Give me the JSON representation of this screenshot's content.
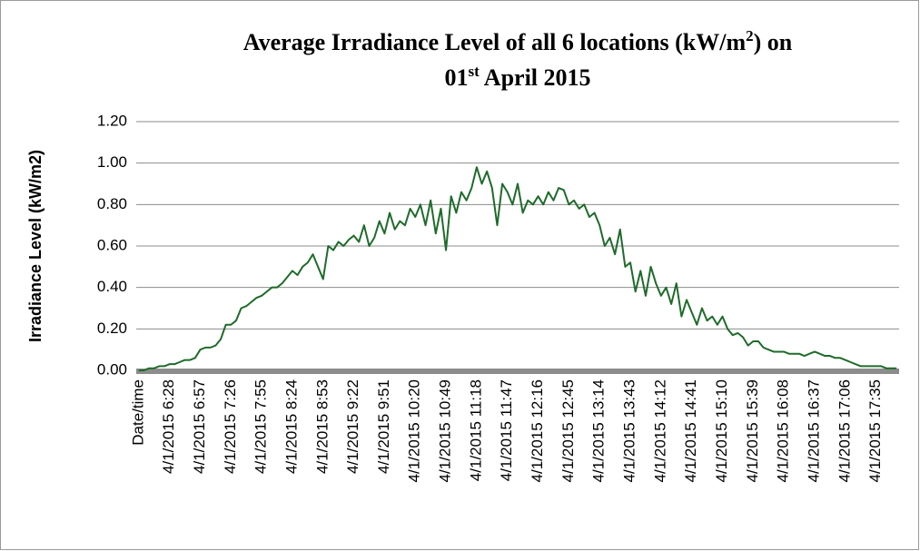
{
  "chart_data": {
    "type": "line",
    "title": {
      "line1": [
        "Average Irradiance Level of all 6 locations (kW/m",
        "2",
        ") on"
      ],
      "line2": [
        "01",
        "st",
        " April 2015"
      ]
    },
    "y_label": "Irradiance Level (kW/m2)",
    "categories": [
      "Date/time",
      null,
      null,
      null,
      null,
      null,
      "4/1/2015 6:28",
      null,
      null,
      null,
      null,
      null,
      "4/1/2015 6:57",
      null,
      null,
      null,
      null,
      null,
      "4/1/2015 7:26",
      null,
      null,
      null,
      null,
      null,
      "4/1/2015 7:55",
      null,
      null,
      null,
      null,
      null,
      "4/1/2015 8:24",
      null,
      null,
      null,
      null,
      null,
      "4/1/2015 8:53",
      null,
      null,
      null,
      null,
      null,
      "4/1/2015 9:22",
      null,
      null,
      null,
      null,
      null,
      "4/1/2015 9:51",
      null,
      null,
      null,
      null,
      null,
      "4/1/2015 10:20",
      null,
      null,
      null,
      null,
      null,
      "4/1/2015 10:49",
      null,
      null,
      null,
      null,
      null,
      "4/1/2015 11:18",
      null,
      null,
      null,
      null,
      null,
      "4/1/2015 11:47",
      null,
      null,
      null,
      null,
      null,
      "4/1/2015 12:16",
      null,
      null,
      null,
      null,
      null,
      "4/1/2015 12:45",
      null,
      null,
      null,
      null,
      null,
      "4/1/2015 13:14",
      null,
      null,
      null,
      null,
      null,
      "4/1/2015 13:43",
      null,
      null,
      null,
      null,
      null,
      "4/1/2015 14:12",
      null,
      null,
      null,
      null,
      null,
      "4/1/2015 14:41",
      null,
      null,
      null,
      null,
      null,
      "4/1/2015 15:10",
      null,
      null,
      null,
      null,
      null,
      "4/1/2015 15:39",
      null,
      null,
      null,
      null,
      null,
      "4/1/2015 16:08",
      null,
      null,
      null,
      null,
      null,
      "4/1/2015 16:37",
      null,
      null,
      null,
      null,
      null,
      "4/1/2015 17:06",
      null,
      null,
      null,
      null,
      null,
      "4/1/2015 17:35",
      null,
      null,
      null,
      null
    ],
    "series": [
      {
        "color": "#1e6b2a",
        "values": [
          0.0,
          0.0,
          0.01,
          0.01,
          0.02,
          0.02,
          0.03,
          0.03,
          0.04,
          0.05,
          0.05,
          0.06,
          0.1,
          0.11,
          0.11,
          0.12,
          0.15,
          0.22,
          0.22,
          0.24,
          0.3,
          0.31,
          0.33,
          0.35,
          0.36,
          0.38,
          0.4,
          0.4,
          0.42,
          0.45,
          0.48,
          0.46,
          0.5,
          0.52,
          0.56,
          0.5,
          0.44,
          0.6,
          0.58,
          0.62,
          0.6,
          0.63,
          0.65,
          0.62,
          0.7,
          0.6,
          0.64,
          0.72,
          0.66,
          0.76,
          0.68,
          0.72,
          0.7,
          0.78,
          0.74,
          0.8,
          0.7,
          0.82,
          0.66,
          0.78,
          0.58,
          0.84,
          0.76,
          0.86,
          0.82,
          0.88,
          0.98,
          0.9,
          0.96,
          0.88,
          0.7,
          0.9,
          0.86,
          0.8,
          0.9,
          0.76,
          0.82,
          0.8,
          0.84,
          0.8,
          0.86,
          0.82,
          0.88,
          0.87,
          0.8,
          0.82,
          0.78,
          0.8,
          0.74,
          0.76,
          0.7,
          0.6,
          0.64,
          0.56,
          0.68,
          0.5,
          0.52,
          0.38,
          0.48,
          0.36,
          0.5,
          0.42,
          0.36,
          0.4,
          0.32,
          0.42,
          0.26,
          0.34,
          0.28,
          0.22,
          0.3,
          0.24,
          0.26,
          0.22,
          0.26,
          0.2,
          0.17,
          0.18,
          0.16,
          0.12,
          0.14,
          0.14,
          0.11,
          0.1,
          0.09,
          0.09,
          0.09,
          0.08,
          0.08,
          0.08,
          0.07,
          0.08,
          0.09,
          0.08,
          0.07,
          0.07,
          0.06,
          0.06,
          0.05,
          0.04,
          0.03,
          0.02,
          0.02,
          0.02,
          0.02,
          0.02,
          0.01,
          0.01,
          0.01
        ]
      }
    ],
    "ylim": [
      0,
      1.2
    ],
    "yticks": [
      {
        "value": 0,
        "label": "0.00"
      },
      {
        "value": 0.2,
        "label": "0.20"
      },
      {
        "value": 0.4,
        "label": "0.40"
      },
      {
        "value": 0.6,
        "label": "0.60"
      },
      {
        "value": 0.8,
        "label": "0.80"
      },
      {
        "value": 1.0,
        "label": "1.00"
      },
      {
        "value": 1.2,
        "label": "1.20"
      }
    ],
    "grid": true
  }
}
